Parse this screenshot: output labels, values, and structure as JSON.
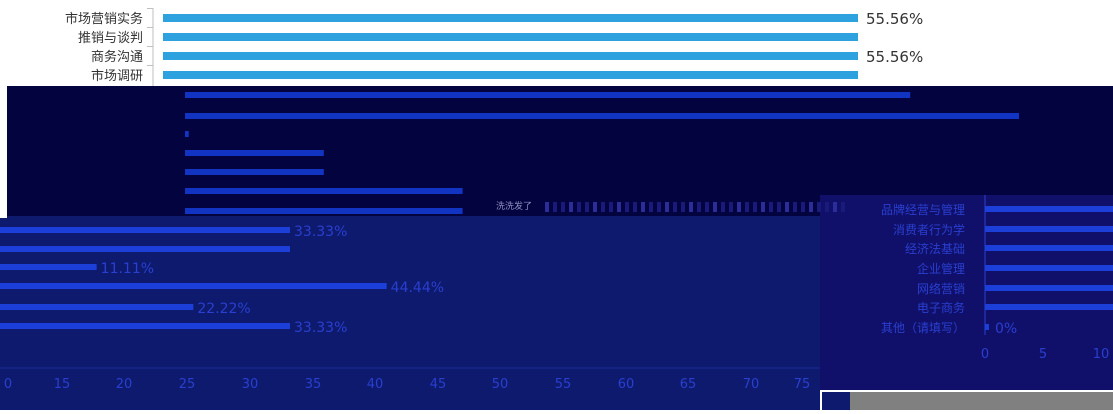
{
  "chart_data": [
    {
      "type": "bar",
      "orientation": "horizontal",
      "categories": [
        "市场营销实务",
        "推销与谈判",
        "商务沟通",
        "市场调研"
      ],
      "values": [
        55.56,
        55.56,
        55.56,
        null
      ],
      "data_labels": [
        "55.56%",
        "",
        "55.56%",
        ""
      ],
      "unit": "%"
    },
    {
      "type": "bar",
      "orientation": "horizontal",
      "values": [
        58,
        66.7,
        0.3,
        11.1,
        11.1,
        22.2,
        22.2
      ]
    },
    {
      "type": "bar",
      "orientation": "horizontal",
      "values": [
        33.33,
        33.33,
        11.11,
        44.44,
        22.22,
        33.33
      ],
      "data_labels": [
        "33.33%",
        "",
        "11.11%",
        "44.44%",
        "22.22%",
        "33.33%"
      ],
      "x_ticks": [
        "0",
        "15",
        "20",
        "25",
        "30",
        "35",
        "40",
        "45",
        "50",
        "55",
        "60",
        "65",
        "70",
        "75"
      ],
      "unit": "%"
    },
    {
      "type": "bar",
      "orientation": "horizontal",
      "categories": [
        "品牌经营与管理",
        "消费者行为学",
        "经济法基础",
        "企业管理",
        "网络营销",
        "电子商务",
        "其他（请填写）"
      ],
      "values": [
        null,
        null,
        null,
        null,
        null,
        null,
        0
      ],
      "data_labels": [
        "",
        "",
        "",
        "",
        "",
        "",
        "0%"
      ],
      "x_ticks": [
        "0",
        "5",
        "10"
      ],
      "unit": "%"
    }
  ],
  "colors": {
    "bar_light": "#2ea1df",
    "bar_dark": "#1b3fd8",
    "bar_blue": "#1234c2",
    "panel_dark": "#03033f",
    "panel_navy": "#0d1a6e",
    "text_dark": "#333333",
    "text_blue": "#2a3fd0"
  },
  "garbled_title": "洗洗发了"
}
